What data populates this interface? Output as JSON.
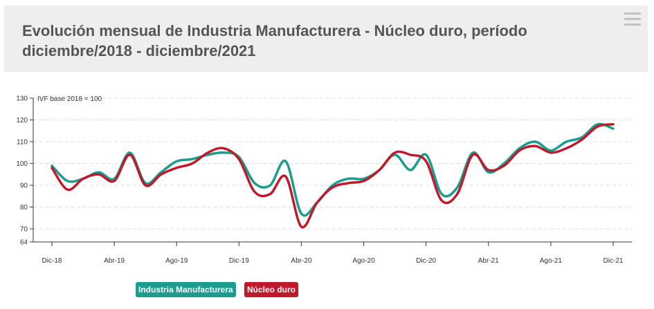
{
  "header": {
    "title_line1": "Evolución mensual de Industria Manufacturera - Núcleo duro, período",
    "title_line2": "diciembre/2018 - diciembre/2021",
    "menu_icon": "hamburger-menu-icon"
  },
  "colors": {
    "series1": "#1a9c8e",
    "series2": "#c0192c",
    "axis": "#333333",
    "grid": "#dddddd",
    "header_bg": "#eeeeee"
  },
  "chart_data": {
    "type": "line",
    "ylabel": "IVF base 2018 = 100",
    "ylim": [
      64,
      130
    ],
    "yticks": [
      64,
      70,
      80,
      90,
      100,
      110,
      120,
      130
    ],
    "x": [
      "Dic-18",
      "Ene-19",
      "Feb-19",
      "Mar-19",
      "Abr-19",
      "May-19",
      "Jun-19",
      "Jul-19",
      "Ago-19",
      "Sep-19",
      "Oct-19",
      "Nov-19",
      "Dic-19",
      "Ene-20",
      "Feb-20",
      "Mar-20",
      "Abr-20",
      "May-20",
      "Jun-20",
      "Jul-20",
      "Ago-20",
      "Sep-20",
      "Oct-20",
      "Nov-20",
      "Dic-20",
      "Ene-21",
      "Feb-21",
      "Mar-21",
      "Abr-21",
      "May-21",
      "Jun-21",
      "Jul-21",
      "Ago-21",
      "Sep-21",
      "Oct-21",
      "Nov-21",
      "Dic-21"
    ],
    "xticks": [
      "Dic-18",
      "Abr-19",
      "Ago-19",
      "Dic-19",
      "Abr-20",
      "Ago-20",
      "Dic-20",
      "Abr-21",
      "Ago-21",
      "Dic-21"
    ],
    "grid": "horizontal dashed",
    "legend_position": "bottom-left",
    "series": [
      {
        "name": "Industria Manufacturera",
        "values": [
          99,
          92,
          93,
          96,
          93,
          105,
          91,
          96,
          101,
          102,
          104,
          105,
          103,
          91,
          90,
          101,
          77,
          82,
          90,
          93,
          93,
          97,
          104,
          97,
          104,
          86,
          89,
          105,
          96,
          100,
          107,
          110,
          106,
          110,
          112,
          118,
          116
        ]
      },
      {
        "name": "Núcleo duro",
        "values": [
          98,
          88,
          93,
          95,
          92,
          104,
          90,
          95,
          98,
          100,
          105,
          107,
          102,
          87,
          86,
          94,
          71,
          82,
          89,
          91,
          92,
          97,
          105,
          104,
          101,
          83,
          86,
          104,
          97,
          99,
          106,
          108,
          105,
          107,
          111,
          117,
          118
        ]
      }
    ]
  }
}
